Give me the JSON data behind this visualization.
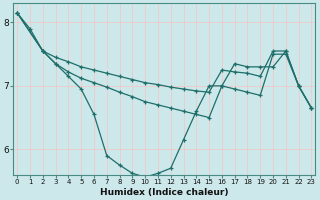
{
  "xlabel": "Humidex (Indice chaleur)",
  "bg_color": "#cde8ea",
  "grid_color": "#f0c8c8",
  "line_color": "#1e6e6a",
  "x_ticks": [
    0,
    1,
    2,
    3,
    4,
    5,
    6,
    7,
    8,
    9,
    10,
    11,
    12,
    13,
    14,
    15,
    16,
    17,
    18,
    19,
    20,
    21,
    22,
    23
  ],
  "ylim": [
    5.6,
    8.3
  ],
  "xlim": [
    -0.3,
    23.3
  ],
  "y_ticks": [
    6,
    7,
    8
  ],
  "series1_x": [
    0,
    1,
    2,
    3,
    4,
    5,
    6,
    7,
    8,
    9,
    10,
    11,
    12,
    13,
    14,
    15,
    16,
    17,
    18,
    19,
    20,
    21,
    22,
    23
  ],
  "series1_y": [
    8.15,
    7.9,
    7.55,
    7.35,
    7.15,
    6.95,
    6.55,
    5.9,
    5.75,
    5.62,
    5.56,
    5.62,
    5.7,
    6.15,
    6.6,
    7.0,
    7.0,
    7.35,
    7.3,
    7.3,
    7.3,
    7.55,
    7.0,
    6.65
  ],
  "series2_x": [
    0,
    2,
    3,
    4,
    5,
    6,
    7,
    8,
    9,
    10,
    11,
    12,
    13,
    14,
    15,
    16,
    17,
    18,
    19,
    20,
    21,
    22,
    23
  ],
  "series2_y": [
    8.15,
    7.55,
    7.45,
    7.38,
    7.3,
    7.25,
    7.2,
    7.15,
    7.1,
    7.05,
    7.02,
    6.98,
    6.95,
    6.92,
    6.9,
    7.25,
    7.22,
    7.2,
    7.15,
    7.55,
    7.55,
    7.0,
    6.65
  ],
  "series3_x": [
    0,
    2,
    3,
    4,
    5,
    6,
    7,
    8,
    9,
    10,
    11,
    12,
    13,
    14,
    15,
    16,
    17,
    18,
    19,
    20,
    21,
    22,
    23
  ],
  "series3_y": [
    8.15,
    7.55,
    7.35,
    7.22,
    7.12,
    7.05,
    6.98,
    6.9,
    6.83,
    6.75,
    6.7,
    6.65,
    6.6,
    6.55,
    6.5,
    7.0,
    6.95,
    6.9,
    6.85,
    7.5,
    7.5,
    7.0,
    6.65
  ]
}
